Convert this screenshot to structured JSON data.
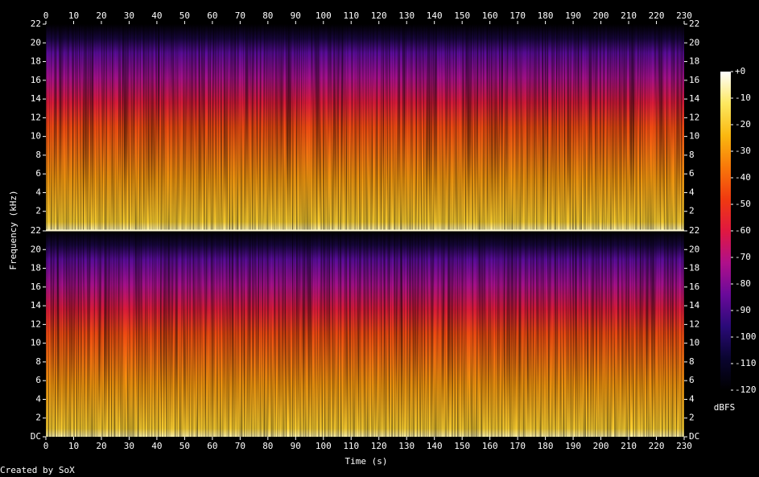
{
  "chart_data": {
    "type": "spectrogram",
    "x_label": "Time (s)",
    "y_label": "Frequency (kHz)",
    "xlim": [
      0,
      230
    ],
    "xticks": [
      0,
      10,
      20,
      30,
      40,
      50,
      60,
      70,
      80,
      90,
      100,
      110,
      120,
      130,
      140,
      150,
      160,
      170,
      180,
      190,
      200,
      210,
      220,
      230
    ],
    "channels": [
      {
        "ylim": [
          0,
          22
        ],
        "yticks": [
          2,
          4,
          6,
          8,
          10,
          12,
          14,
          16,
          18,
          20,
          22
        ]
      },
      {
        "ylim": [
          0,
          22
        ],
        "yticks": [
          {
            "value": 0,
            "label": "DC"
          },
          2,
          4,
          6,
          8,
          10,
          12,
          14,
          16,
          18,
          20,
          22
        ]
      }
    ],
    "colorbar": {
      "label": "dBFS",
      "lim": [
        -120,
        0
      ],
      "ticks": [
        {
          "value": 0,
          "label": "+0"
        },
        -10,
        -20,
        -30,
        -40,
        -50,
        -60,
        -70,
        -80,
        -90,
        -100,
        -110,
        -120
      ],
      "colors": [
        "#000000",
        "#0a0530",
        "#2a0a78",
        "#6a0a9a",
        "#b0108a",
        "#e01840",
        "#f03a10",
        "#f8780a",
        "#fbb810",
        "#fde860",
        "#ffffff"
      ]
    },
    "credit": "Created by SoX"
  }
}
